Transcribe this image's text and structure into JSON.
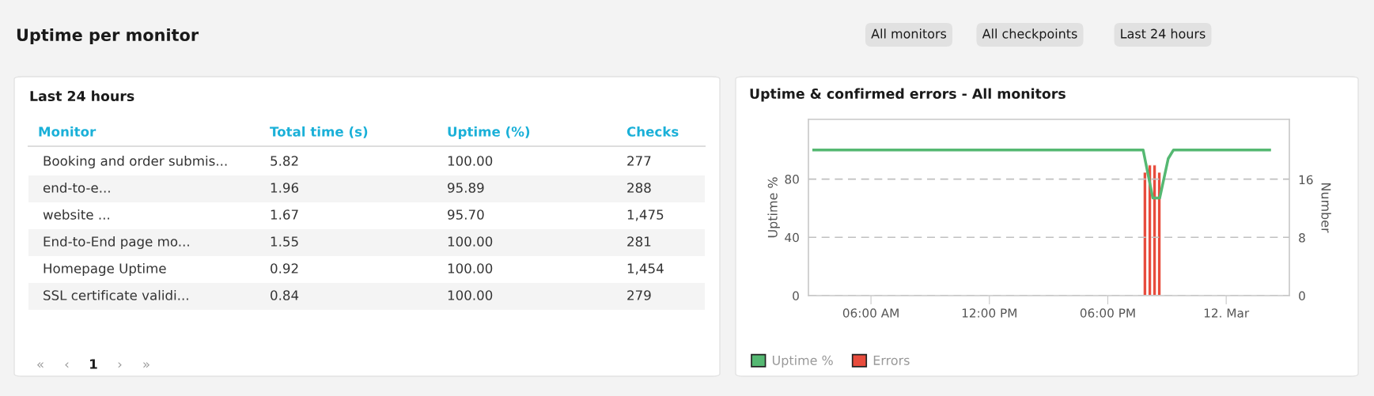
{
  "chart_data": [
    {
      "type": "other",
      "title": "Uptime per monitor",
      "annotations": [
        "All monitors",
        "All checkpoints",
        "Last 24 hours"
      ]
    },
    {
      "type": "other",
      "title": "Last 24 hours",
      "annotations": [
        "Monitor",
        "Total time (s)",
        "Uptime (%)",
        "Checks",
        "Booking and order submis...",
        "5.82",
        "100.00",
        "277",
        "end-to-e...",
        "1.96",
        "95.89",
        "288",
        "website ...",
        "1.67",
        "95.70",
        "1,475",
        "End-to-End page mo...",
        "1.55",
        "100.00",
        "281",
        "Homepage Uptime",
        "0.92",
        "100.00",
        "1,454",
        "SSL certificate validi...",
        "0.84",
        "100.00",
        "279",
        "«",
        "‹",
        "1",
        "›",
        "»"
      ]
    },
    {
      "type": "line",
      "title": "Uptime & confirmed errors - All monitors",
      "ylabel": "Uptime %",
      "y2label": "Number",
      "xlim": [
        2.83,
        27.2
      ],
      "xticks": [
        {
          "value": 6,
          "label": "06:00 AM"
        },
        {
          "value": 12,
          "label": "12:00 PM"
        },
        {
          "value": 18,
          "label": "06:00 PM"
        },
        {
          "value": 24,
          "label": "12. Mar"
        }
      ],
      "ylim": [
        0,
        121
      ],
      "yticks": [
        0,
        40,
        80
      ],
      "y2lim": [
        0,
        24.3
      ],
      "y2ticks": [
        0,
        8,
        16
      ],
      "grid": "y",
      "legend": "bottom left",
      "line_style": "solid",
      "marker": "none",
      "series": [
        {
          "name": "Uptime %",
          "type": "line",
          "color": "#55b872",
          "x": [
            3.1,
            19.79,
            20.28,
            20.63,
            21.06,
            21.33,
            26.2
          ],
          "values": [
            100,
            100,
            67,
            67,
            94,
            100,
            100
          ]
        },
        {
          "name": "Errors",
          "type": "bar",
          "axis": "y2",
          "color": "#e84c3d",
          "x": [
            19.88,
            20.13,
            20.37,
            20.61
          ],
          "values": [
            17,
            18,
            18,
            17
          ]
        }
      ]
    }
  ]
}
